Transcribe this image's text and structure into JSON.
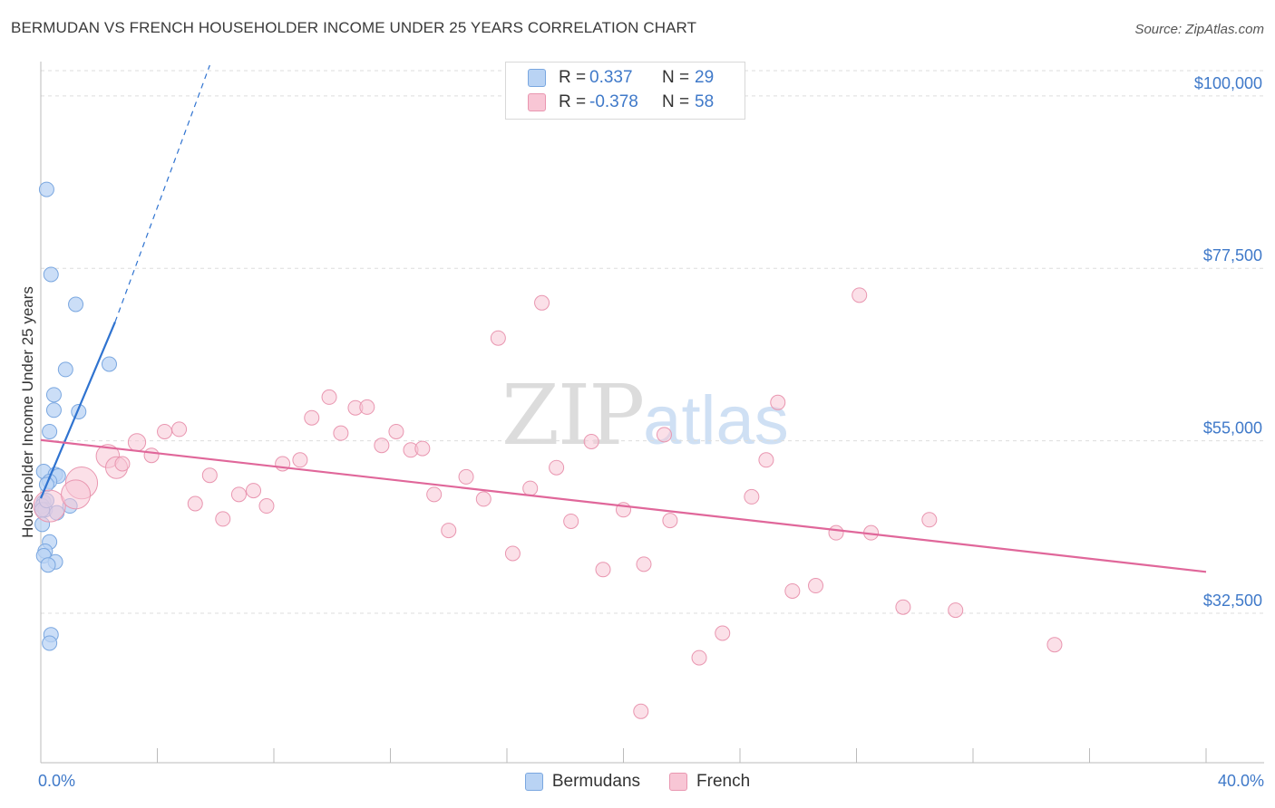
{
  "title": "BERMUDAN VS FRENCH HOUSEHOLDER INCOME UNDER 25 YEARS CORRELATION CHART",
  "source": "Source: ZipAtlas.com",
  "watermark": {
    "zip": "ZIP",
    "atlas": "atlas"
  },
  "colors": {
    "blue_fill": "#b9d3f4",
    "blue_stroke": "#7aa7e0",
    "blue_line": "#2f73d0",
    "pink_fill": "#f8c6d5",
    "pink_stroke": "#e996b0",
    "pink_line": "#e0679a",
    "axis_text": "#3f79c9",
    "grid": "#dddddd"
  },
  "legend": {
    "rows": [
      {
        "r_label": "R =",
        "r_value": "0.337",
        "n_label": "N =",
        "n_value": "29",
        "color": "blue"
      },
      {
        "r_label": "R =",
        "r_value": "-0.378",
        "n_label": "N =",
        "n_value": "58",
        "color": "pink"
      }
    ]
  },
  "bottom_legend": [
    {
      "label": "Bermudans",
      "color": "blue"
    },
    {
      "label": "French",
      "color": "pink"
    }
  ],
  "chart_data": {
    "type": "scatter",
    "title": "BERMUDAN VS FRENCH HOUSEHOLDER INCOME UNDER 25 YEARS CORRELATION CHART",
    "xlabel": "",
    "ylabel": "Householder Income Under 25 years",
    "xlim": [
      0,
      40
    ],
    "ylim": [
      13000,
      104000
    ],
    "x_tick_labels": [
      "0.0%",
      "40.0%"
    ],
    "y_ticks": [
      32500,
      55000,
      77500,
      100000
    ],
    "y_tick_labels": [
      "$32,500",
      "$55,000",
      "$77,500",
      "$100,000"
    ],
    "grid": true,
    "legend_position": "top-center",
    "series": [
      {
        "name": "Bermudans",
        "color": "blue",
        "points": [
          {
            "x": 0.2,
            "y": 87800,
            "s": 1
          },
          {
            "x": 0.35,
            "y": 76700,
            "s": 1
          },
          {
            "x": 1.2,
            "y": 72800,
            "s": 1
          },
          {
            "x": 0.85,
            "y": 64300,
            "s": 1
          },
          {
            "x": 2.35,
            "y": 65000,
            "s": 1
          },
          {
            "x": 0.45,
            "y": 61000,
            "s": 1
          },
          {
            "x": 0.45,
            "y": 59000,
            "s": 1
          },
          {
            "x": 1.3,
            "y": 58800,
            "s": 1
          },
          {
            "x": 0.3,
            "y": 56200,
            "s": 1
          },
          {
            "x": 0.1,
            "y": 51000,
            "s": 1
          },
          {
            "x": 0.5,
            "y": 50600,
            "s": 1
          },
          {
            "x": 0.6,
            "y": 50400,
            "s": 1
          },
          {
            "x": 0.3,
            "y": 49700,
            "s": 1
          },
          {
            "x": 0.2,
            "y": 49300,
            "s": 1
          },
          {
            "x": 0.1,
            "y": 47000,
            "s": 1
          },
          {
            "x": 0.05,
            "y": 46500,
            "s": 1
          },
          {
            "x": 0.15,
            "y": 46000,
            "s": 1
          },
          {
            "x": 1.0,
            "y": 46500,
            "s": 1
          },
          {
            "x": 0.55,
            "y": 45600,
            "s": 1
          },
          {
            "x": 0.05,
            "y": 44100,
            "s": 1
          },
          {
            "x": 0.3,
            "y": 41800,
            "s": 1
          },
          {
            "x": 0.15,
            "y": 40600,
            "s": 1
          },
          {
            "x": 0.1,
            "y": 40000,
            "s": 1
          },
          {
            "x": 0.5,
            "y": 39200,
            "s": 1
          },
          {
            "x": 0.25,
            "y": 38800,
            "s": 1
          },
          {
            "x": 0.35,
            "y": 29700,
            "s": 1
          },
          {
            "x": 0.3,
            "y": 28600,
            "s": 1
          },
          {
            "x": 0.05,
            "y": 46000,
            "s": 1
          },
          {
            "x": 0.2,
            "y": 47200,
            "s": 1
          }
        ],
        "trend": {
          "x0": 0,
          "y0": 47500,
          "x1": 2.55,
          "y1": 70500,
          "dash_x1": 5.8,
          "dash_y1": 104000
        }
      },
      {
        "name": "French",
        "color": "pink",
        "points": [
          {
            "x": 0.3,
            "y": 46500,
            "s": 2.2
          },
          {
            "x": 1.4,
            "y": 49500,
            "s": 2.2
          },
          {
            "x": 1.2,
            "y": 48000,
            "s": 2.0
          },
          {
            "x": 2.3,
            "y": 53000,
            "s": 1.6
          },
          {
            "x": 2.6,
            "y": 51500,
            "s": 1.5
          },
          {
            "x": 3.3,
            "y": 54800,
            "s": 1.2
          },
          {
            "x": 3.8,
            "y": 53100,
            "s": 1
          },
          {
            "x": 4.25,
            "y": 56200,
            "s": 1
          },
          {
            "x": 4.75,
            "y": 56500,
            "s": 1
          },
          {
            "x": 5.3,
            "y": 46800,
            "s": 1
          },
          {
            "x": 5.8,
            "y": 50500,
            "s": 1
          },
          {
            "x": 6.25,
            "y": 44800,
            "s": 1
          },
          {
            "x": 6.8,
            "y": 48000,
            "s": 1
          },
          {
            "x": 7.3,
            "y": 48500,
            "s": 1
          },
          {
            "x": 7.75,
            "y": 46500,
            "s": 1
          },
          {
            "x": 8.3,
            "y": 52000,
            "s": 1
          },
          {
            "x": 8.9,
            "y": 52500,
            "s": 1
          },
          {
            "x": 9.3,
            "y": 58000,
            "s": 1
          },
          {
            "x": 9.9,
            "y": 60700,
            "s": 1
          },
          {
            "x": 10.3,
            "y": 56000,
            "s": 1
          },
          {
            "x": 10.8,
            "y": 59300,
            "s": 1
          },
          {
            "x": 11.2,
            "y": 59400,
            "s": 1
          },
          {
            "x": 11.7,
            "y": 54400,
            "s": 1
          },
          {
            "x": 12.2,
            "y": 56200,
            "s": 1
          },
          {
            "x": 12.7,
            "y": 53800,
            "s": 1
          },
          {
            "x": 13.1,
            "y": 54000,
            "s": 1
          },
          {
            "x": 13.5,
            "y": 48000,
            "s": 1
          },
          {
            "x": 14.0,
            "y": 43300,
            "s": 1
          },
          {
            "x": 14.6,
            "y": 50300,
            "s": 1
          },
          {
            "x": 15.2,
            "y": 47400,
            "s": 1
          },
          {
            "x": 15.7,
            "y": 68400,
            "s": 1
          },
          {
            "x": 16.2,
            "y": 40300,
            "s": 1
          },
          {
            "x": 16.8,
            "y": 48800,
            "s": 1
          },
          {
            "x": 17.2,
            "y": 73000,
            "s": 1
          },
          {
            "x": 17.7,
            "y": 51500,
            "s": 1
          },
          {
            "x": 18.2,
            "y": 44500,
            "s": 1
          },
          {
            "x": 18.9,
            "y": 54900,
            "s": 1
          },
          {
            "x": 19.3,
            "y": 38200,
            "s": 1
          },
          {
            "x": 20.0,
            "y": 46000,
            "s": 1
          },
          {
            "x": 20.6,
            "y": 19700,
            "s": 1
          },
          {
            "x": 20.7,
            "y": 38900,
            "s": 1
          },
          {
            "x": 21.4,
            "y": 55800,
            "s": 1
          },
          {
            "x": 21.6,
            "y": 44600,
            "s": 1
          },
          {
            "x": 22.6,
            "y": 26700,
            "s": 1
          },
          {
            "x": 23.4,
            "y": 29900,
            "s": 1
          },
          {
            "x": 24.4,
            "y": 47700,
            "s": 1
          },
          {
            "x": 24.9,
            "y": 52500,
            "s": 1
          },
          {
            "x": 25.3,
            "y": 60000,
            "s": 1
          },
          {
            "x": 25.8,
            "y": 35400,
            "s": 1
          },
          {
            "x": 26.6,
            "y": 36100,
            "s": 1
          },
          {
            "x": 27.3,
            "y": 43000,
            "s": 1
          },
          {
            "x": 28.1,
            "y": 74000,
            "s": 1
          },
          {
            "x": 28.5,
            "y": 43000,
            "s": 1
          },
          {
            "x": 29.6,
            "y": 33300,
            "s": 1
          },
          {
            "x": 30.5,
            "y": 44700,
            "s": 1
          },
          {
            "x": 31.4,
            "y": 32900,
            "s": 1
          },
          {
            "x": 34.8,
            "y": 28400,
            "s": 1
          },
          {
            "x": 2.8,
            "y": 52000,
            "s": 1
          }
        ],
        "trend": {
          "x0": 0,
          "y0": 55100,
          "x1": 40,
          "y1": 37900
        }
      }
    ]
  }
}
